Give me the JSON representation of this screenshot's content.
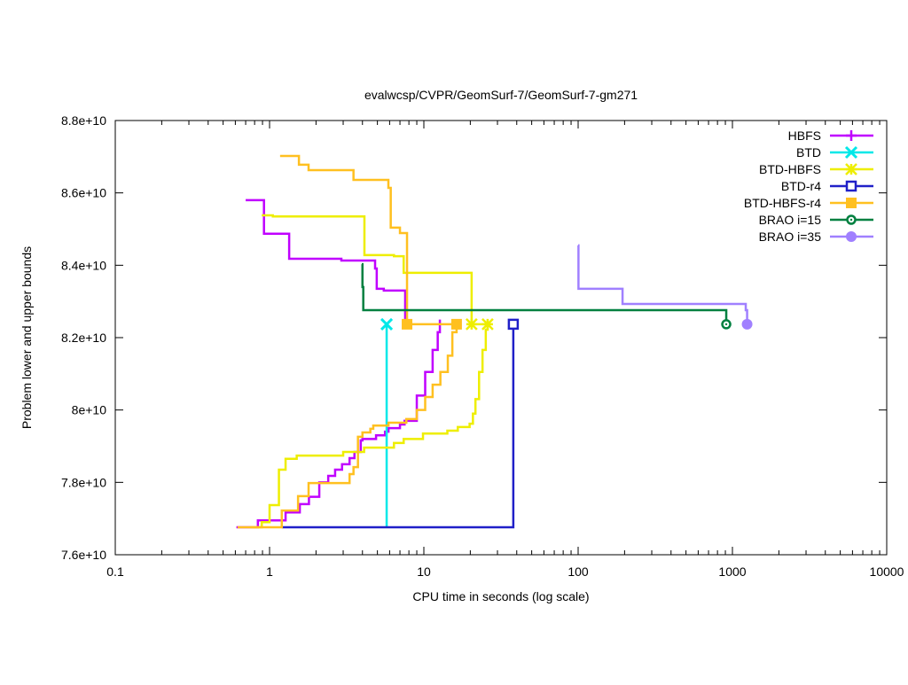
{
  "chart_data": {
    "type": "line",
    "title": "evalwcsp/CVPR/GeomSurf-7/GeomSurf-7-gm271",
    "xlabel": "CPU time in seconds (log scale)",
    "ylabel": "Problem lower and upper bounds",
    "xscale": "log",
    "xlim": [
      0.1,
      10000
    ],
    "ylim": [
      76000000000.0,
      88000000000.0
    ],
    "xticks": [
      0.1,
      1,
      10,
      100,
      1000,
      10000
    ],
    "xtick_labels": [
      "0.1",
      "1",
      "10",
      "100",
      "1000",
      "10000"
    ],
    "yticks": [
      76000000000.0,
      78000000000.0,
      80000000000.0,
      82000000000.0,
      84000000000.0,
      86000000000.0,
      88000000000.0
    ],
    "ytick_labels": [
      "7.6e+10",
      "7.8e+10",
      "8e+10",
      "8.2e+10",
      "8.4e+10",
      "8.6e+10",
      "8.8e+10"
    ],
    "grid": false,
    "legend_position": "top-right",
    "series": [
      {
        "name": "HBFS",
        "color": "#c000ff",
        "marker": "plus",
        "upper": [
          [
            0.7,
            85800000000.0
          ],
          [
            0.92,
            84870000000.0
          ],
          [
            1.34,
            84180000000.0
          ],
          [
            2.92,
            84130000000.0
          ],
          [
            4.83,
            83910000000.0
          ],
          [
            4.95,
            83350000000.0
          ],
          [
            5.5,
            83300000000.0
          ],
          [
            7.57,
            82370000000.0
          ]
        ],
        "lower": [
          [
            0.61,
            76760000000.0
          ],
          [
            0.84,
            76950000000.0
          ],
          [
            1.27,
            77170000000.0
          ],
          [
            1.57,
            77400000000.0
          ],
          [
            1.8,
            77600000000.0
          ],
          [
            2.1,
            78000000000.0
          ],
          [
            2.4,
            78180000000.0
          ],
          [
            2.66,
            78350000000.0
          ],
          [
            2.95,
            78500000000.0
          ],
          [
            3.3,
            78670000000.0
          ],
          [
            3.55,
            78840000000.0
          ],
          [
            3.9,
            79160000000.0
          ],
          [
            4.0,
            79200000000.0
          ],
          [
            4.9,
            79300000000.0
          ],
          [
            5.6,
            79400000000.0
          ],
          [
            5.9,
            79500000000.0
          ],
          [
            7.0,
            79600000000.0
          ],
          [
            7.5,
            79700000000.0
          ],
          [
            9.0,
            80400000000.0
          ],
          [
            10.2,
            81050000000.0
          ],
          [
            11.4,
            81660000000.0
          ],
          [
            12.3,
            82150000000.0
          ],
          [
            12.7,
            82500000000.0
          ]
        ],
        "end_markers": []
      },
      {
        "name": "BTD",
        "color": "#00e8e8",
        "marker": "cross",
        "upper": [],
        "lower": [
          [
            5.74,
            76760000000.0
          ],
          [
            5.74,
            82370000000.0
          ]
        ],
        "end_markers": [
          [
            5.74,
            82370000000.0
          ]
        ]
      },
      {
        "name": "BTD-HBFS",
        "color": "#eeee00",
        "marker": "star",
        "upper": [
          [
            0.89,
            85380000000.0
          ],
          [
            1.05,
            85350000000.0
          ],
          [
            4.12,
            84280000000.0
          ],
          [
            6.4,
            84250000000.0
          ],
          [
            7.4,
            83790000000.0
          ],
          [
            20.4,
            82370000000.0
          ]
        ],
        "lower": [
          [
            0.75,
            76760000000.0
          ],
          [
            0.89,
            76900000000.0
          ],
          [
            1.0,
            77370000000.0
          ],
          [
            1.15,
            78350000000.0
          ],
          [
            1.27,
            78650000000.0
          ],
          [
            1.5,
            78740000000.0
          ],
          [
            3.0,
            78840000000.0
          ],
          [
            4.1,
            78960000000.0
          ],
          [
            6.4,
            79090000000.0
          ],
          [
            7.4,
            79200000000.0
          ],
          [
            9.87,
            79350000000.0
          ],
          [
            14.2,
            79430000000.0
          ],
          [
            16.6,
            79530000000.0
          ],
          [
            19.8,
            79620000000.0
          ],
          [
            20.8,
            79900000000.0
          ],
          [
            21.6,
            80300000000.0
          ],
          [
            22.8,
            81050000000.0
          ],
          [
            24.0,
            81660000000.0
          ],
          [
            25.2,
            82220000000.0
          ],
          [
            25.9,
            82370000000.0
          ]
        ],
        "end_markers": [
          [
            20.4,
            82370000000.0
          ],
          [
            25.9,
            82370000000.0
          ]
        ]
      },
      {
        "name": "BTD-r4",
        "color": "#2020c8",
        "marker": "open-square",
        "upper": [],
        "lower": [
          [
            1.2,
            76760000000.0
          ],
          [
            38.0,
            76760000000.0
          ],
          [
            38.0,
            82370000000.0
          ]
        ],
        "end_markers": [
          [
            38.0,
            82370000000.0
          ]
        ]
      },
      {
        "name": "BTD-HBFS-r4",
        "color": "#ffc020",
        "marker": "filled-square",
        "upper": [
          [
            1.17,
            87020000000.0
          ],
          [
            1.55,
            86780000000.0
          ],
          [
            1.79,
            86630000000.0
          ],
          [
            3.5,
            86360000000.0
          ],
          [
            5.89,
            86140000000.0
          ],
          [
            6.1,
            85040000000.0
          ],
          [
            7.0,
            84890000000.0
          ],
          [
            7.78,
            82370000000.0
          ]
        ],
        "lower": [
          [
            0.62,
            76760000000.0
          ],
          [
            1.2,
            77220000000.0
          ],
          [
            1.53,
            77620000000.0
          ],
          [
            1.79,
            77980000000.0
          ],
          [
            3.3,
            78230000000.0
          ],
          [
            3.5,
            78420000000.0
          ],
          [
            3.74,
            79260000000.0
          ],
          [
            4.0,
            79380000000.0
          ],
          [
            4.5,
            79480000000.0
          ],
          [
            4.7,
            79570000000.0
          ],
          [
            5.9,
            79650000000.0
          ],
          [
            7.7,
            79750000000.0
          ],
          [
            9.0,
            80000000000.0
          ],
          [
            10.2,
            80360000000.0
          ],
          [
            11.4,
            80700000000.0
          ],
          [
            12.8,
            81050000000.0
          ],
          [
            14.3,
            81500000000.0
          ],
          [
            15.3,
            82150000000.0
          ],
          [
            16.3,
            82370000000.0
          ]
        ],
        "end_markers": [
          [
            7.78,
            82370000000.0
          ],
          [
            16.3,
            82370000000.0
          ]
        ]
      },
      {
        "name": "BRAO i=15",
        "color": "#008040",
        "marker": "open-circle-dot",
        "upper": [
          [
            3.96,
            84030000000.0
          ],
          [
            4.0,
            83400000000.0
          ],
          [
            4.05,
            82760000000.0
          ],
          [
            912,
            82370000000.0
          ]
        ],
        "lower": [],
        "end_markers": [
          [
            912,
            82370000000.0
          ]
        ]
      },
      {
        "name": "BRAO i=35",
        "color": "#a080ff",
        "marker": "filled-circle",
        "upper": [
          [
            100,
            84550000000.0
          ],
          [
            100.5,
            83350000000.0
          ],
          [
            194,
            82930000000.0
          ],
          [
            1220,
            82760000000.0
          ],
          [
            1245,
            82370000000.0
          ]
        ],
        "lower": [],
        "end_markers": [
          [
            1245,
            82370000000.0
          ]
        ]
      }
    ]
  }
}
